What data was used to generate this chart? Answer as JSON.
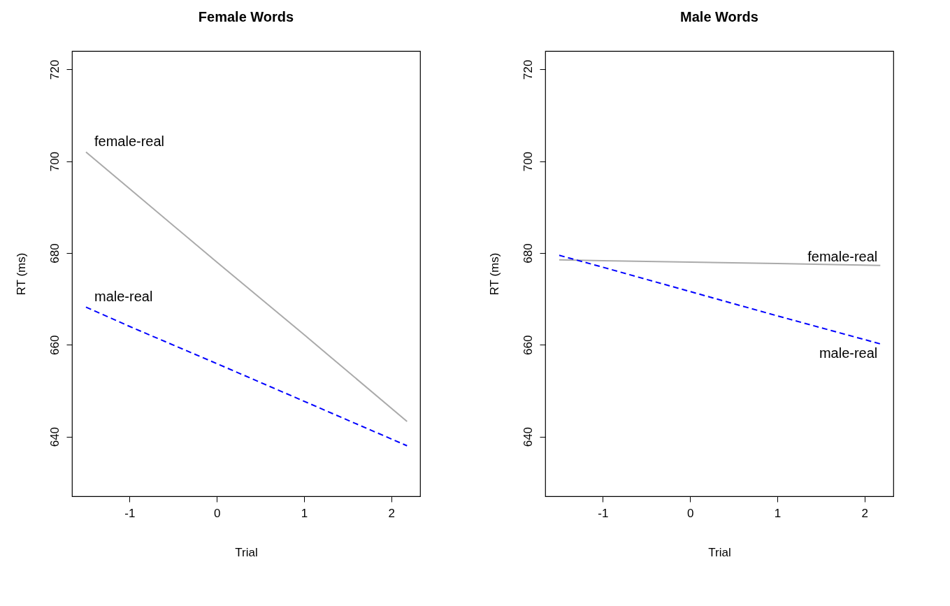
{
  "chart_data": [
    {
      "type": "line",
      "title": "Female Words",
      "xlabel": "Trial",
      "ylabel": "RT (ms)",
      "xlim": [
        -1.66,
        2.33
      ],
      "ylim": [
        627,
        724
      ],
      "xticks": [
        -1,
        0,
        1,
        2
      ],
      "yticks": [
        640,
        660,
        680,
        700,
        720
      ],
      "x": [
        -1.5,
        -1,
        0,
        1,
        2.18
      ],
      "series": [
        {
          "name": "female-real",
          "color": "#aaaaaa",
          "line_style": "solid",
          "values": [
            702,
            694,
            678,
            662.2,
            643.3
          ]
        },
        {
          "name": "male-real",
          "color": "#0000ff",
          "line_style": "dashed",
          "values": [
            668.2,
            664,
            655.9,
            647.7,
            638
          ]
        }
      ]
    },
    {
      "type": "line",
      "title": "Male Words",
      "xlabel": "Trial",
      "ylabel": "RT (ms)",
      "xlim": [
        -1.66,
        2.33
      ],
      "ylim": [
        627,
        724
      ],
      "xticks": [
        -1,
        0,
        1,
        2
      ],
      "yticks": [
        640,
        660,
        680,
        700,
        720
      ],
      "x": [
        -1.5,
        -1,
        0,
        1,
        2.18
      ],
      "series": [
        {
          "name": "female-real",
          "color": "#aaaaaa",
          "line_style": "solid",
          "values": [
            678.5,
            678.3,
            678,
            677.7,
            677.3
          ]
        },
        {
          "name": "male-real",
          "color": "#0000ff",
          "line_style": "dashed",
          "values": [
            679.5,
            676.9,
            671.6,
            666.3,
            660.2
          ]
        }
      ]
    }
  ]
}
